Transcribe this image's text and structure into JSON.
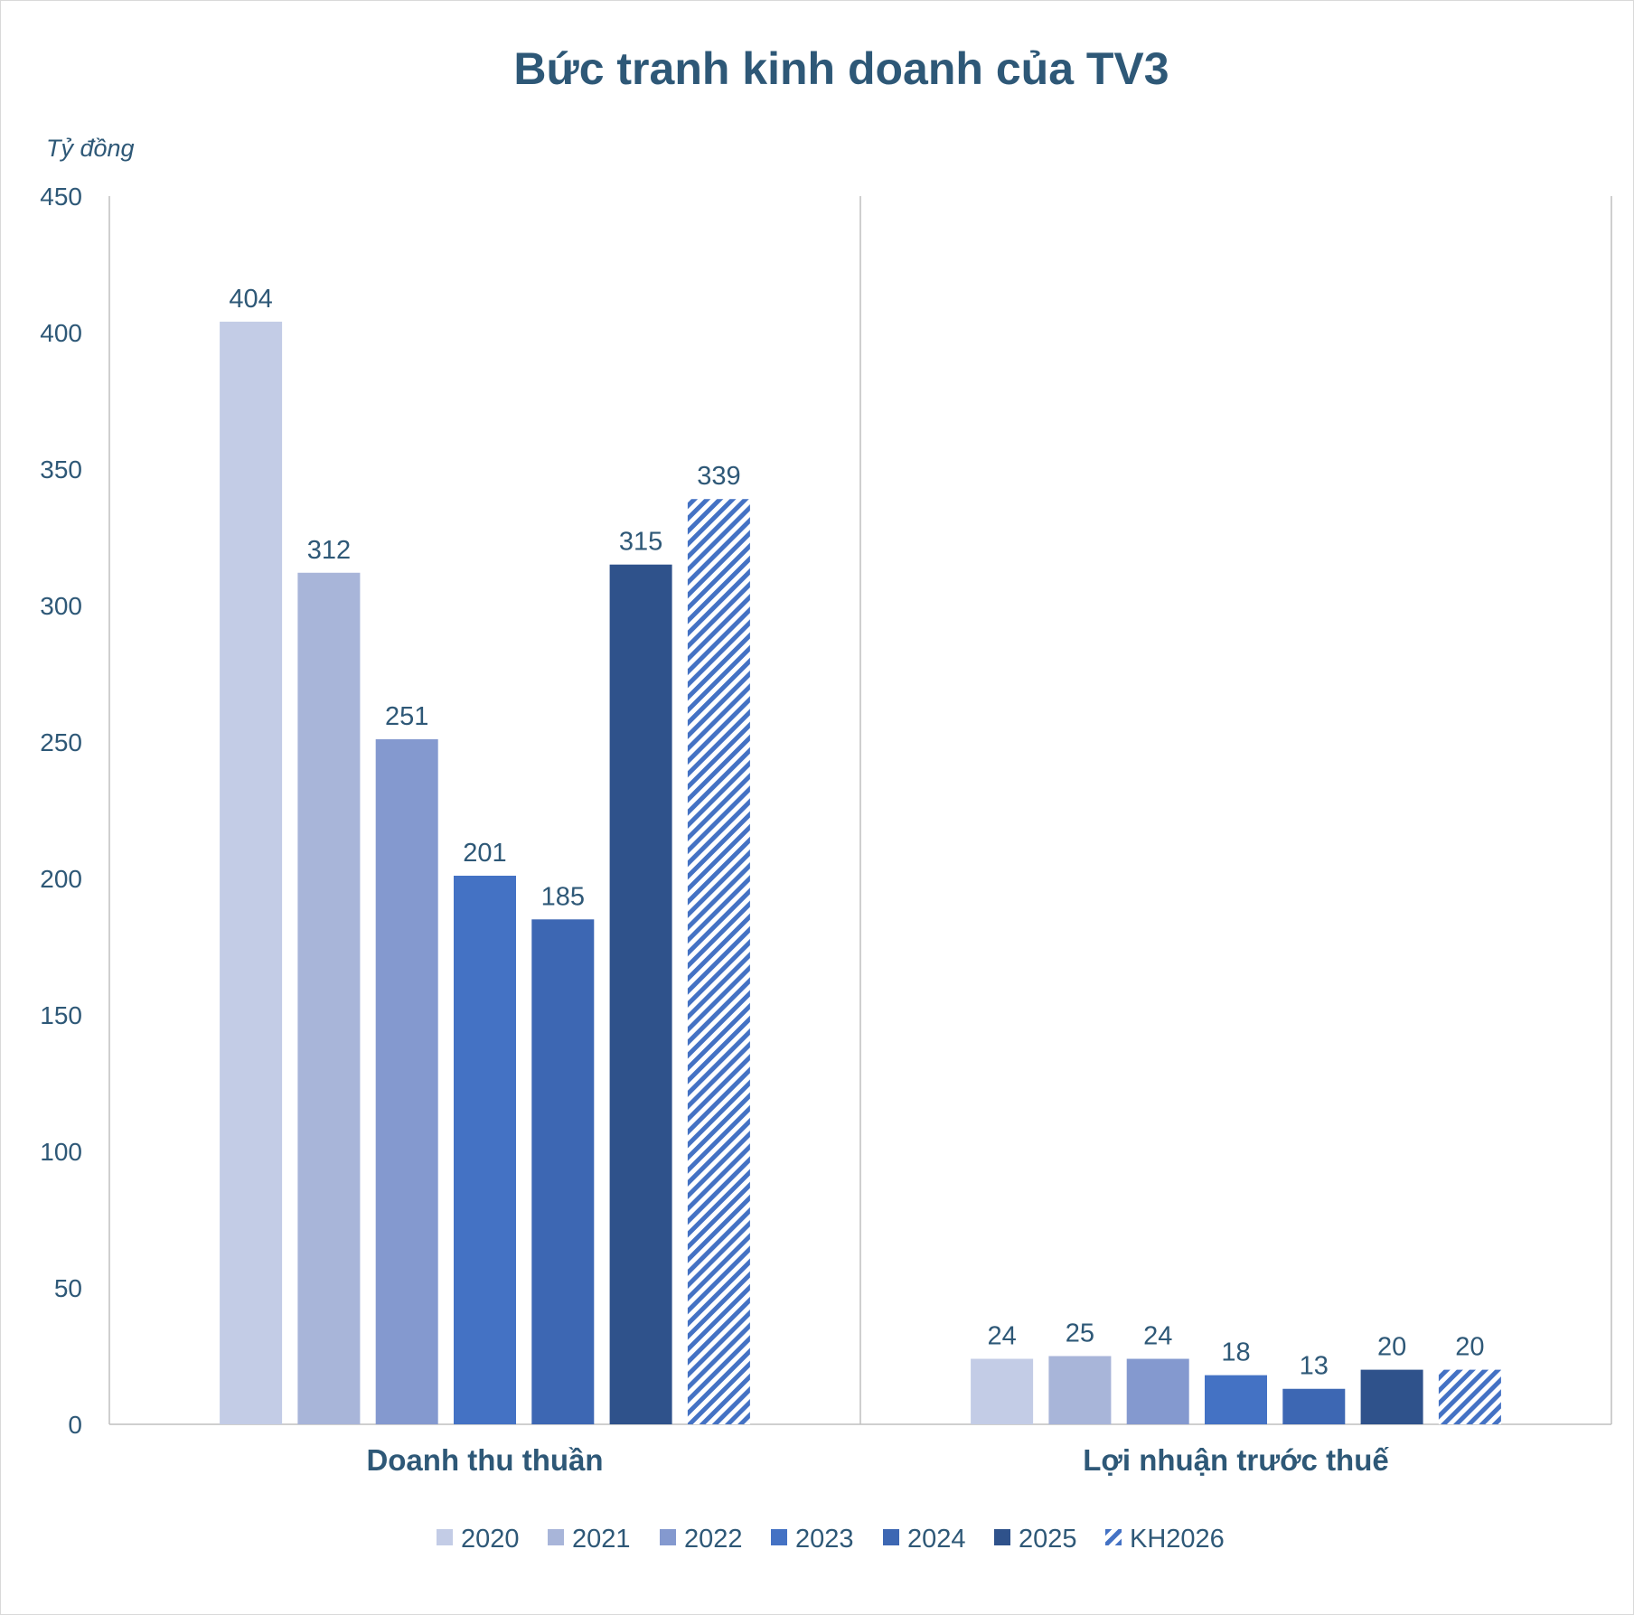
{
  "chart_data": {
    "type": "bar",
    "title": "Bức tranh kinh doanh của TV3",
    "unit_label": "Tỷ đồng",
    "categories": [
      "Doanh thu thuần",
      "Lợi nhuận trước thuế"
    ],
    "series": [
      {
        "name": "2020",
        "values": [
          404,
          24
        ],
        "color": "#c3cce6",
        "hatched": false
      },
      {
        "name": "2021",
        "values": [
          312,
          25
        ],
        "color": "#a8b5d9",
        "hatched": false
      },
      {
        "name": "2022",
        "values": [
          251,
          24
        ],
        "color": "#8499cf",
        "hatched": false
      },
      {
        "name": "2023",
        "values": [
          201,
          18
        ],
        "color": "#4472c4",
        "hatched": false
      },
      {
        "name": "2024",
        "values": [
          185,
          13
        ],
        "color": "#3d67b3",
        "hatched": false
      },
      {
        "name": "2025",
        "values": [
          315,
          20
        ],
        "color": "#2f528b",
        "hatched": false
      },
      {
        "name": "KH2026",
        "values": [
          339,
          20
        ],
        "color": "#4472c4",
        "hatched": true
      }
    ],
    "ylim": [
      0,
      450
    ],
    "yticks": [
      0,
      50,
      100,
      150,
      200,
      250,
      300,
      350,
      400,
      450
    ],
    "category_dividers": true,
    "legend_position": "bottom",
    "grid": false
  }
}
